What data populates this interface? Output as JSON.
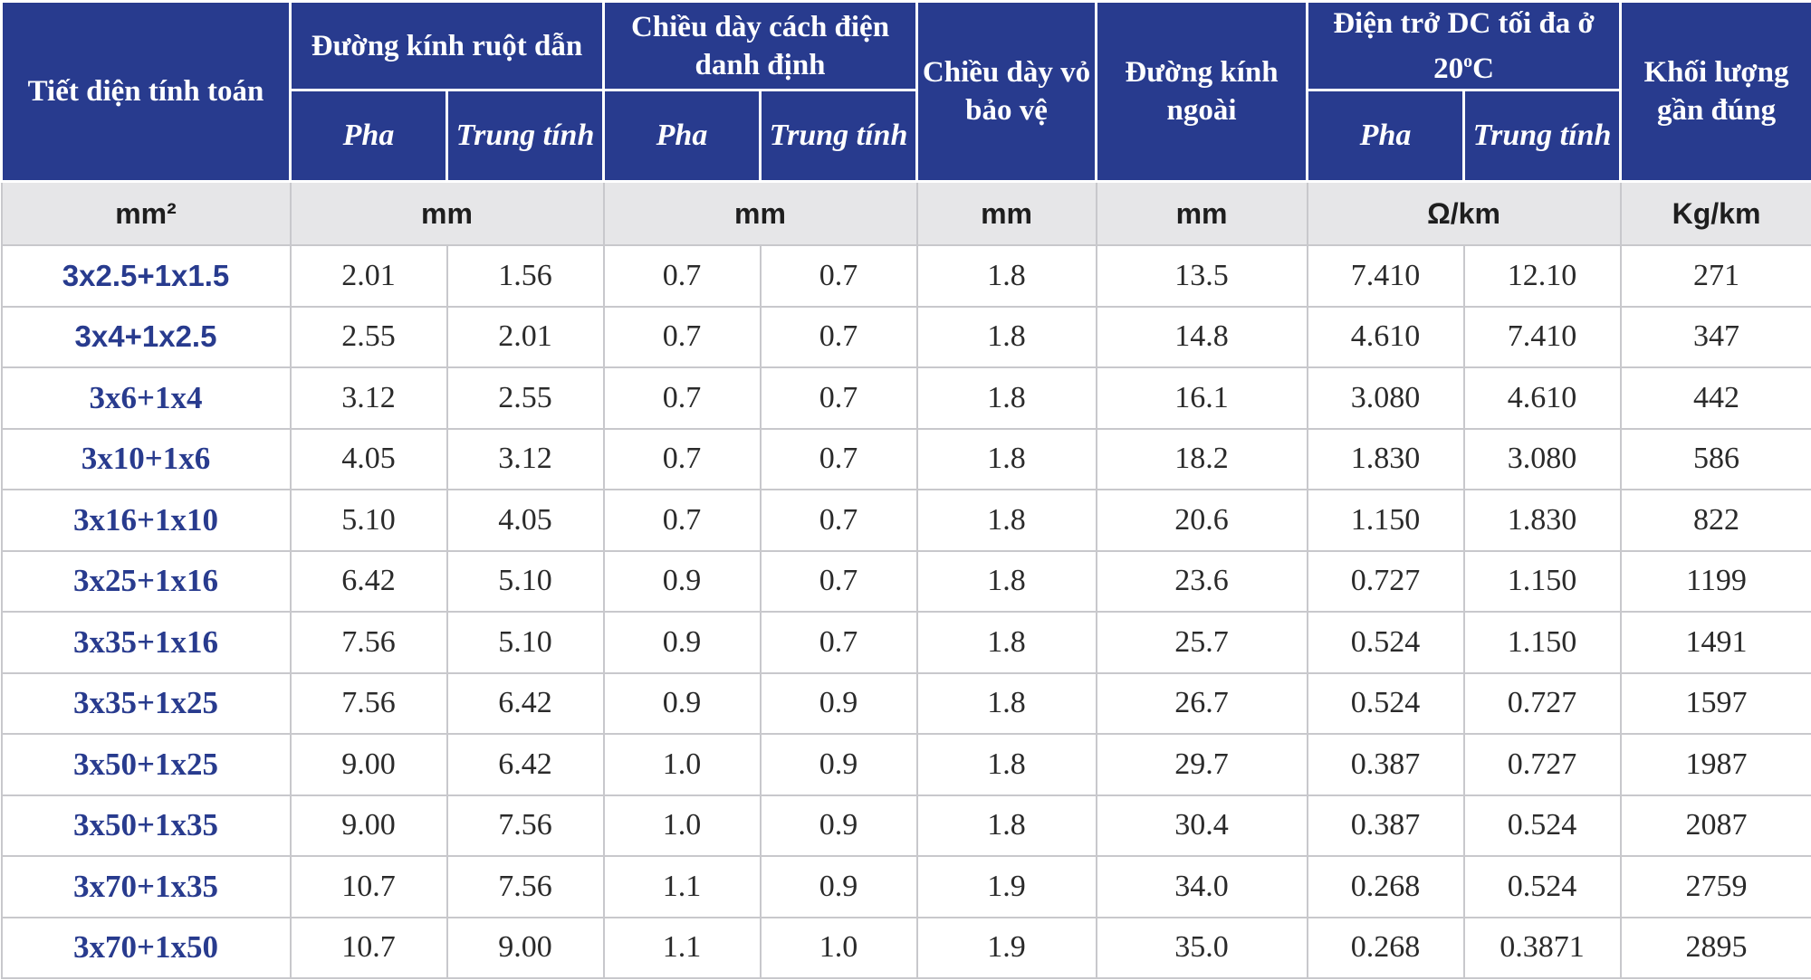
{
  "header": {
    "section": "Tiết diện tính toán",
    "conductor_diameter": "Đường kính ruột dẫn",
    "insulation_thickness": "Chiều dày cách điện danh định",
    "sheath_thickness": "Chiều dày vỏ bảo vệ",
    "outer_diameter": "Đường kính ngoài",
    "dc_resistance_prefix": "Điện trở DC tối đa ở 20",
    "dc_resistance_sup": "o",
    "dc_resistance_suffix": "C",
    "approx_weight": "Khối lượng gần đúng",
    "phase": "Pha",
    "neutral": "Trung tính"
  },
  "units": {
    "section": "mm²",
    "conductor_diameter": "mm",
    "insulation_thickness": "mm",
    "sheath_thickness": "mm",
    "outer_diameter": "mm",
    "dc_resistance": "Ω/km",
    "approx_weight": "Kg/km"
  },
  "rows": [
    {
      "section": "3x2.5+1x1.5",
      "cd_phase": "2.01",
      "cd_neutral": "1.56",
      "ins_phase": "0.7",
      "ins_neutral": "0.7",
      "sheath": "1.8",
      "od": "13.5",
      "r_phase": "7.410",
      "r_neutral": "12.10",
      "weight": "271"
    },
    {
      "section": "3x4+1x2.5",
      "cd_phase": "2.55",
      "cd_neutral": "2.01",
      "ins_phase": "0.7",
      "ins_neutral": "0.7",
      "sheath": "1.8",
      "od": "14.8",
      "r_phase": "4.610",
      "r_neutral": "7.410",
      "weight": "347"
    },
    {
      "section": "3x6+1x4",
      "cd_phase": "3.12",
      "cd_neutral": "2.55",
      "ins_phase": "0.7",
      "ins_neutral": "0.7",
      "sheath": "1.8",
      "od": "16.1",
      "r_phase": "3.080",
      "r_neutral": "4.610",
      "weight": "442"
    },
    {
      "section": "3x10+1x6",
      "cd_phase": "4.05",
      "cd_neutral": "3.12",
      "ins_phase": "0.7",
      "ins_neutral": "0.7",
      "sheath": "1.8",
      "od": "18.2",
      "r_phase": "1.830",
      "r_neutral": "3.080",
      "weight": "586"
    },
    {
      "section": "3x16+1x10",
      "cd_phase": "5.10",
      "cd_neutral": "4.05",
      "ins_phase": "0.7",
      "ins_neutral": "0.7",
      "sheath": "1.8",
      "od": "20.6",
      "r_phase": "1.150",
      "r_neutral": "1.830",
      "weight": "822"
    },
    {
      "section": "3x25+1x16",
      "cd_phase": "6.42",
      "cd_neutral": "5.10",
      "ins_phase": "0.9",
      "ins_neutral": "0.7",
      "sheath": "1.8",
      "od": "23.6",
      "r_phase": "0.727",
      "r_neutral": "1.150",
      "weight": "1199"
    },
    {
      "section": "3x35+1x16",
      "cd_phase": "7.56",
      "cd_neutral": "5.10",
      "ins_phase": "0.9",
      "ins_neutral": "0.7",
      "sheath": "1.8",
      "od": "25.7",
      "r_phase": "0.524",
      "r_neutral": "1.150",
      "weight": "1491"
    },
    {
      "section": "3x35+1x25",
      "cd_phase": "7.56",
      "cd_neutral": "6.42",
      "ins_phase": "0.9",
      "ins_neutral": "0.9",
      "sheath": "1.8",
      "od": "26.7",
      "r_phase": "0.524",
      "r_neutral": "0.727",
      "weight": "1597"
    },
    {
      "section": "3x50+1x25",
      "cd_phase": "9.00",
      "cd_neutral": "6.42",
      "ins_phase": "1.0",
      "ins_neutral": "0.9",
      "sheath": "1.8",
      "od": "29.7",
      "r_phase": "0.387",
      "r_neutral": "0.727",
      "weight": "1987"
    },
    {
      "section": "3x50+1x35",
      "cd_phase": "9.00",
      "cd_neutral": "7.56",
      "ins_phase": "1.0",
      "ins_neutral": "0.9",
      "sheath": "1.8",
      "od": "30.4",
      "r_phase": "0.387",
      "r_neutral": "0.524",
      "weight": "2087"
    },
    {
      "section": "3x70+1x35",
      "cd_phase": "10.7",
      "cd_neutral": "7.56",
      "ins_phase": "1.1",
      "ins_neutral": "0.9",
      "sheath": "1.9",
      "od": "34.0",
      "r_phase": "0.268",
      "r_neutral": "0.524",
      "weight": "2759"
    },
    {
      "section": "3x70+1x50",
      "cd_phase": "10.7",
      "cd_neutral": "9.00",
      "ins_phase": "1.1",
      "ins_neutral": "1.0",
      "sheath": "1.9",
      "od": "35.0",
      "r_phase": "0.268",
      "r_neutral": "0.3871",
      "weight": "2895"
    }
  ]
}
